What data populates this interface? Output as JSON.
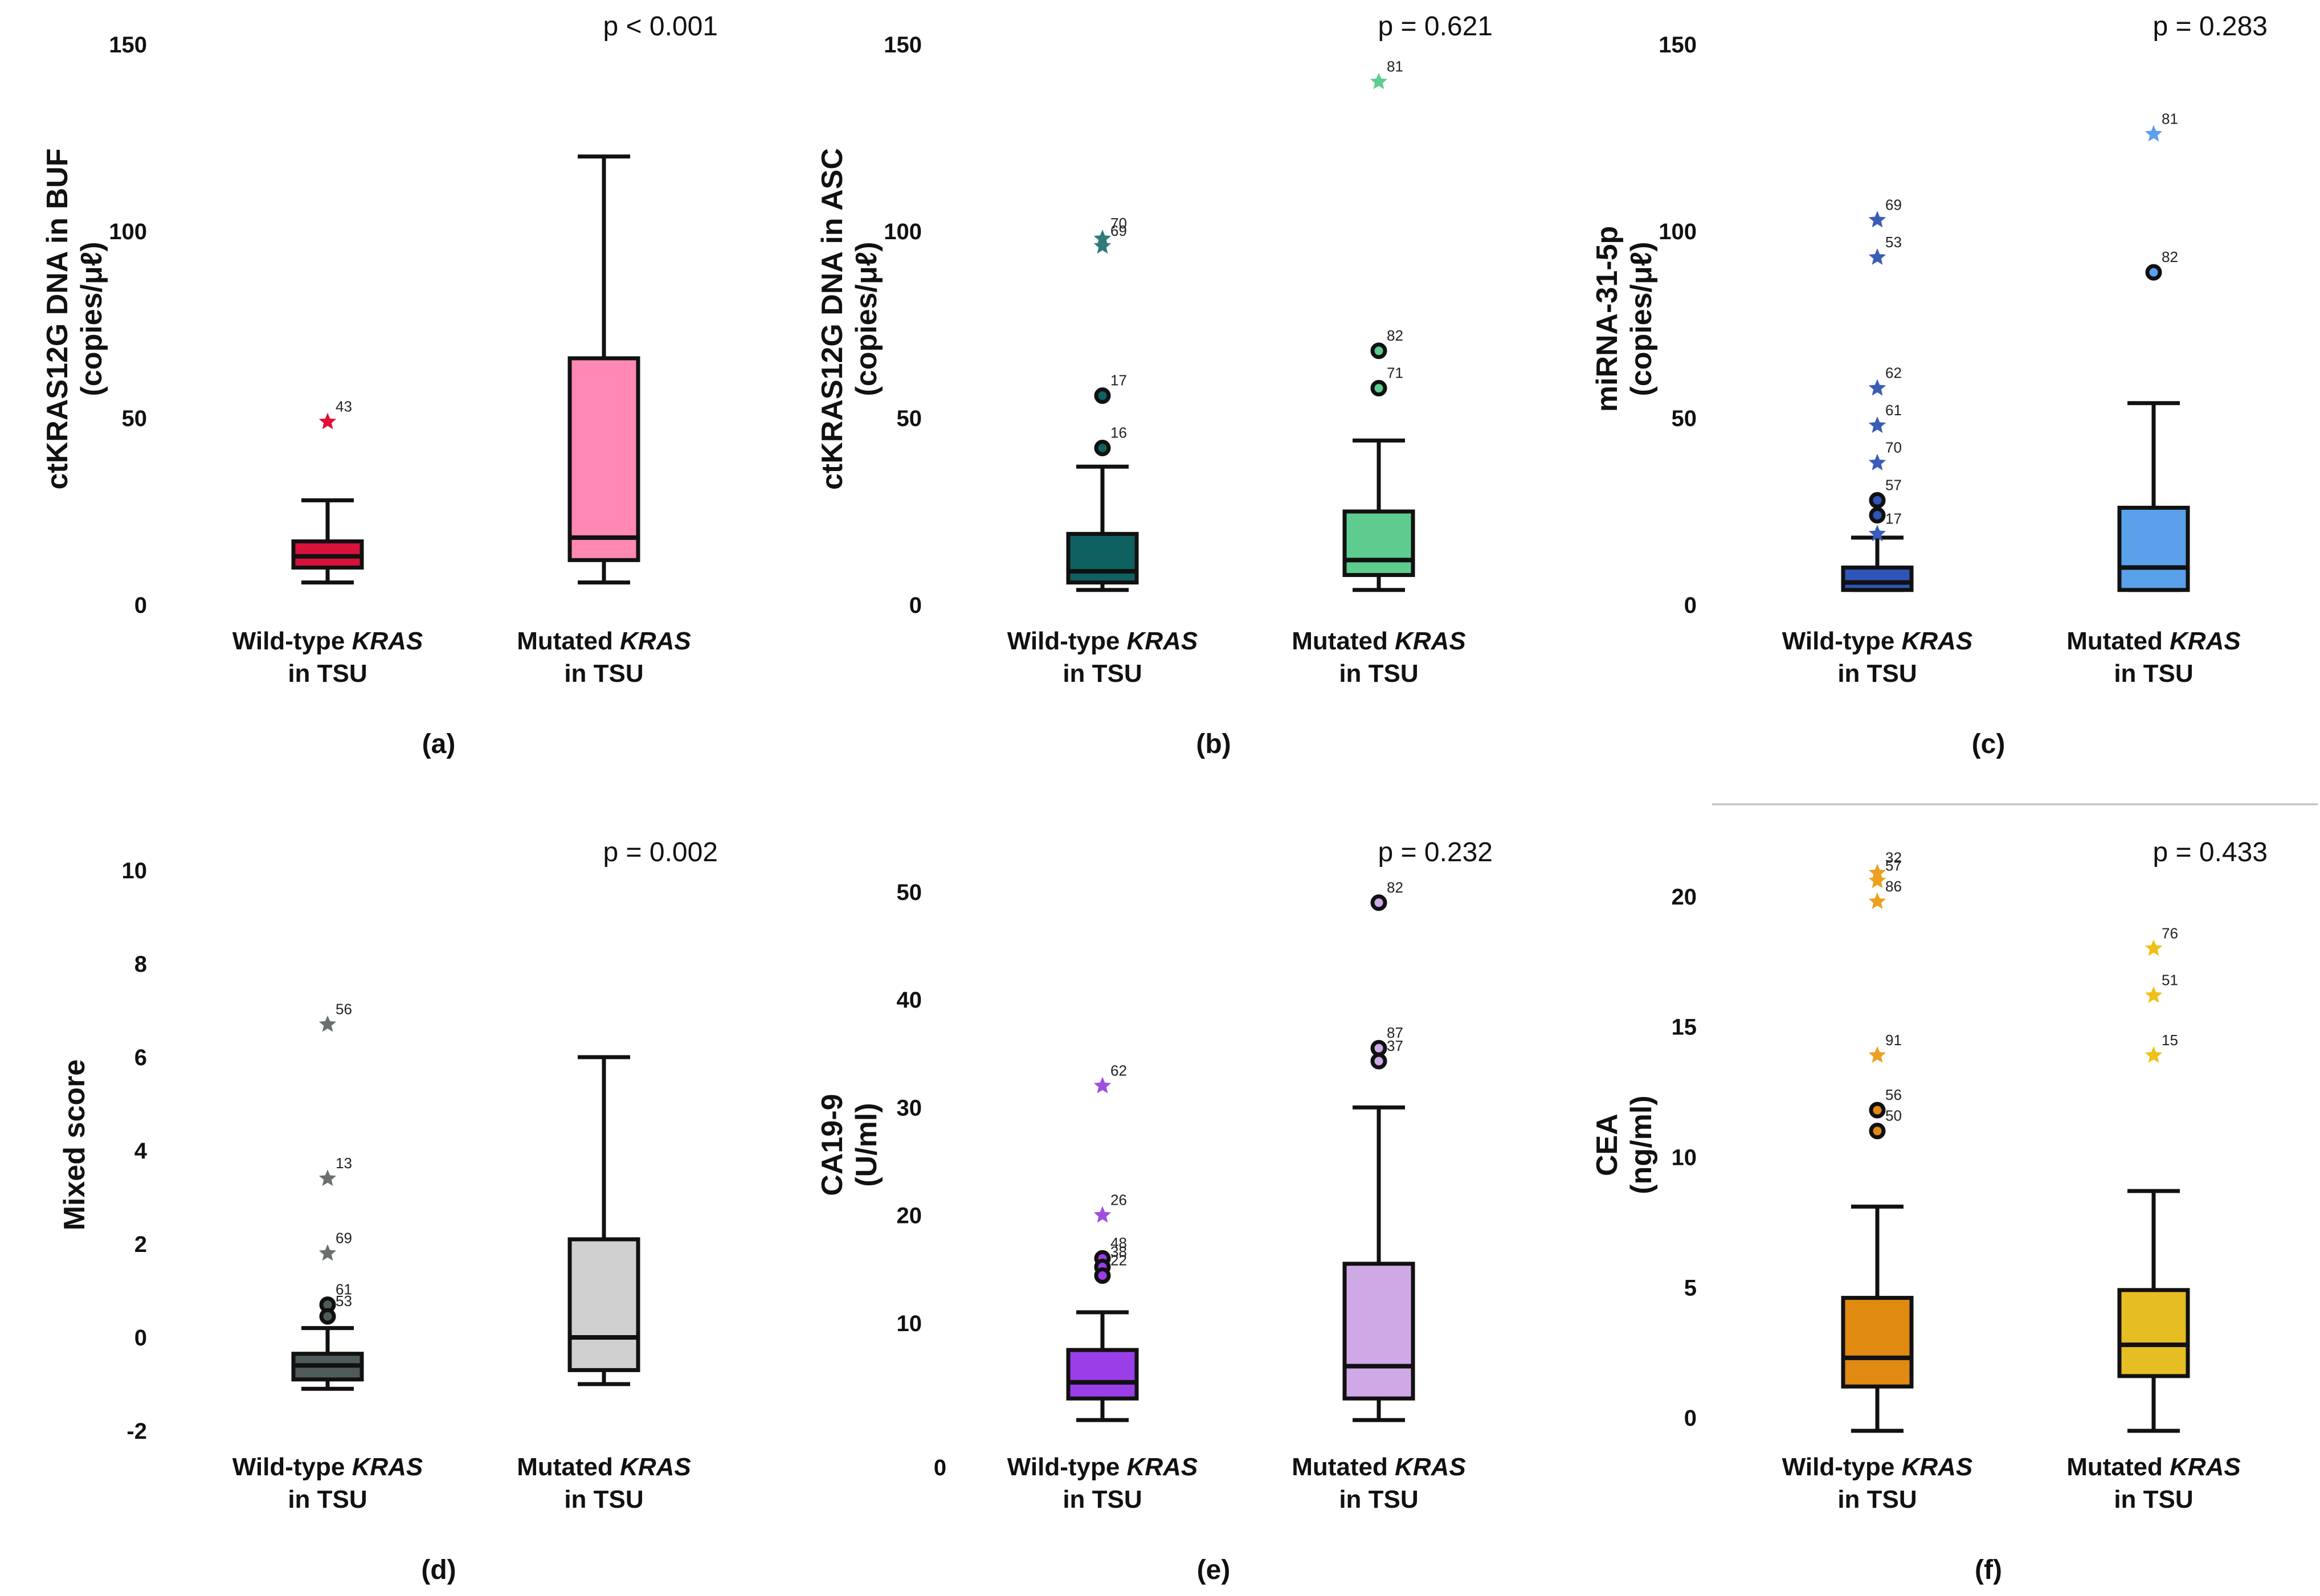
{
  "figure": {
    "group_labels": [
      [
        "Wild-type ",
        "KRAS",
        "in TSU"
      ],
      [
        "Mutated ",
        "KRAS",
        "in TSU"
      ]
    ]
  },
  "chart_data": [
    {
      "type": "box",
      "panel": "(a)",
      "pvalue": "p < 0.001",
      "ylabel_lines": [
        "ctKRAS12G DNA in BUF",
        "(copies/μℓ)"
      ],
      "yticks": [
        0,
        50,
        100,
        150
      ],
      "ylim": [
        0,
        150
      ],
      "colors": [
        "#d9123c",
        "#ff88b5"
      ],
      "star_color": "#e0103a",
      "boxes": [
        {
          "min": 6,
          "q1": 10,
          "median": 13,
          "q3": 17,
          "max": 28
        },
        {
          "min": 6,
          "q1": 12,
          "median": 18,
          "q3": 66,
          "max": 120
        }
      ],
      "outliers": [
        {
          "group": 0,
          "value": 49,
          "kind": "star",
          "label": "43"
        }
      ]
    },
    {
      "type": "box",
      "panel": "(b)",
      "pvalue": "p = 0.621",
      "ylabel_lines": [
        "ctKRAS12G DNA in ASC",
        "(copies/μℓ)"
      ],
      "yticks": [
        0,
        50,
        100,
        150
      ],
      "ylim": [
        0,
        150
      ],
      "colors": [
        "#0f6161",
        "#5dcc8e"
      ],
      "star_color": "#2f7a7a",
      "boxes": [
        {
          "min": 4,
          "q1": 6,
          "median": 9,
          "q3": 19,
          "max": 37
        },
        {
          "min": 4,
          "q1": 8,
          "median": 12,
          "q3": 25,
          "max": 44
        }
      ],
      "outliers": [
        {
          "group": 0,
          "value": 96,
          "kind": "star",
          "label": "69"
        },
        {
          "group": 0,
          "value": 98,
          "kind": "star",
          "label": "70"
        },
        {
          "group": 0,
          "value": 56,
          "kind": "circle",
          "label": "17"
        },
        {
          "group": 0,
          "value": 42,
          "kind": "circle",
          "label": "16"
        },
        {
          "group": 1,
          "value": 140,
          "kind": "star",
          "label": "81",
          "color": "#5dcc8e"
        },
        {
          "group": 1,
          "value": 68,
          "kind": "circle",
          "label": "82"
        },
        {
          "group": 1,
          "value": 58,
          "kind": "circle",
          "label": "71"
        }
      ]
    },
    {
      "type": "box",
      "panel": "(c)",
      "pvalue": "p = 0.283",
      "ylabel_lines": [
        "miRNA-31-5p",
        "(copies/μℓ)"
      ],
      "yticks": [
        0,
        50,
        100,
        150
      ],
      "ylim": [
        0,
        150
      ],
      "colors": [
        "#2f55b8",
        "#5aa0ea"
      ],
      "star_color": "#3a5db6",
      "boxes": [
        {
          "min": 4,
          "q1": 4,
          "median": 6,
          "q3": 10,
          "max": 18
        },
        {
          "min": 4,
          "q1": 4,
          "median": 10,
          "q3": 26,
          "max": 54
        }
      ],
      "outliers": [
        {
          "group": 0,
          "value": 103,
          "kind": "star",
          "label": "69"
        },
        {
          "group": 0,
          "value": 93,
          "kind": "star",
          "label": "53"
        },
        {
          "group": 0,
          "value": 58,
          "kind": "star",
          "label": "62"
        },
        {
          "group": 0,
          "value": 48,
          "kind": "star",
          "label": "61"
        },
        {
          "group": 0,
          "value": 38,
          "kind": "star",
          "label": "70"
        },
        {
          "group": 0,
          "value": 28,
          "kind": "circle",
          "label": "57"
        },
        {
          "group": 0,
          "value": 24,
          "kind": "circle",
          "label": ""
        },
        {
          "group": 0,
          "value": 19,
          "kind": "star",
          "label": "17"
        },
        {
          "group": 1,
          "value": 126,
          "kind": "star",
          "label": "81",
          "color": "#5aa0ea"
        },
        {
          "group": 1,
          "value": 89,
          "kind": "circle",
          "label": "82"
        }
      ]
    },
    {
      "type": "box",
      "panel": "(d)",
      "pvalue": "p = 0.002",
      "ylabel_lines": [
        "Mixed score"
      ],
      "yticks": [
        -2,
        0,
        2,
        4,
        6,
        8,
        10
      ],
      "ylim": [
        -2,
        10
      ],
      "colors": [
        "#4f5a5a",
        "#d0d0d0"
      ],
      "star_color": "#6a7070",
      "boxes": [
        {
          "min": -1.1,
          "q1": -0.9,
          "median": -0.6,
          "q3": -0.35,
          "max": 0.2
        },
        {
          "min": -1.0,
          "q1": -0.7,
          "median": 0.0,
          "q3": 2.1,
          "max": 6.0
        }
      ],
      "outliers": [
        {
          "group": 0,
          "value": 6.7,
          "kind": "star",
          "label": "56"
        },
        {
          "group": 0,
          "value": 3.4,
          "kind": "star",
          "label": "13"
        },
        {
          "group": 0,
          "value": 1.8,
          "kind": "star",
          "label": "69"
        },
        {
          "group": 0,
          "value": 0.7,
          "kind": "circle",
          "label": "61"
        },
        {
          "group": 0,
          "value": 0.45,
          "kind": "circle",
          "label": "53"
        }
      ]
    },
    {
      "type": "box",
      "panel": "(e)",
      "pvalue": "p = 0.232",
      "ylabel_lines": [
        "CA19-9",
        "(U/ml)"
      ],
      "yticks": [
        10,
        20,
        30,
        40,
        50
      ],
      "ylim": [
        0,
        52
      ],
      "zero_label": "0",
      "colors": [
        "#9a3ee8",
        "#cfa8e6"
      ],
      "star_color": "#a04ee0",
      "boxes": [
        {
          "min": 1,
          "q1": 3,
          "median": 4.5,
          "q3": 7.5,
          "max": 11
        },
        {
          "min": 1,
          "q1": 3,
          "median": 6,
          "q3": 15.5,
          "max": 30
        }
      ],
      "outliers": [
        {
          "group": 0,
          "value": 32,
          "kind": "star",
          "label": "62"
        },
        {
          "group": 0,
          "value": 20,
          "kind": "star",
          "label": "26"
        },
        {
          "group": 0,
          "value": 16,
          "kind": "circle",
          "label": "48"
        },
        {
          "group": 0,
          "value": 15.2,
          "kind": "circle",
          "label": "38"
        },
        {
          "group": 0,
          "value": 14.4,
          "kind": "circle",
          "label": "22"
        },
        {
          "group": 1,
          "value": 49,
          "kind": "circle",
          "label": "82"
        },
        {
          "group": 1,
          "value": 35.5,
          "kind": "circle",
          "label": "87"
        },
        {
          "group": 1,
          "value": 34.3,
          "kind": "circle",
          "label": "37"
        }
      ]
    },
    {
      "type": "box",
      "panel": "(f)",
      "pvalue": "p = 0.433",
      "ylabel_lines": [
        "CEA",
        "(ng/ml)"
      ],
      "yticks": [
        0,
        5,
        10,
        15,
        20
      ],
      "ylim": [
        -0.5,
        21
      ],
      "colors": [
        "#e08a12",
        "#e6bd22"
      ],
      "star_color": "#eba020",
      "boxes": [
        {
          "min": -0.5,
          "q1": 1.2,
          "median": 2.3,
          "q3": 4.6,
          "max": 8.1
        },
        {
          "min": -0.5,
          "q1": 1.6,
          "median": 2.8,
          "q3": 4.9,
          "max": 8.7
        }
      ],
      "outliers": [
        {
          "group": 0,
          "value": 20.9,
          "kind": "star",
          "label": "32"
        },
        {
          "group": 0,
          "value": 20.6,
          "kind": "star",
          "label": "57"
        },
        {
          "group": 0,
          "value": 19.8,
          "kind": "star",
          "label": "86"
        },
        {
          "group": 0,
          "value": 13.9,
          "kind": "star",
          "label": "91"
        },
        {
          "group": 0,
          "value": 11.8,
          "kind": "circle",
          "label": "56"
        },
        {
          "group": 0,
          "value": 11.0,
          "kind": "circle",
          "label": "50"
        },
        {
          "group": 1,
          "value": 18.0,
          "kind": "star",
          "label": "76",
          "color": "#f0c018"
        },
        {
          "group": 1,
          "value": 16.2,
          "kind": "star",
          "label": "51",
          "color": "#f0c018"
        },
        {
          "group": 1,
          "value": 13.9,
          "kind": "star",
          "label": "15",
          "color": "#f0c018"
        }
      ]
    }
  ]
}
